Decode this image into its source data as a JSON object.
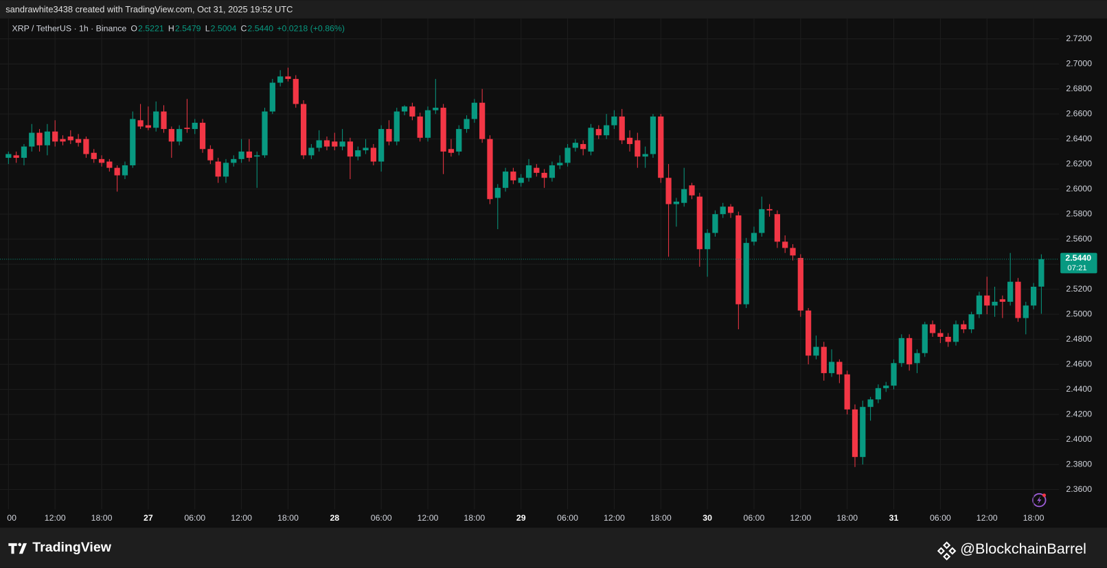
{
  "header": "sandrawhite3438 created with TradingView.com, Oct 31, 2025 19:52 UTC",
  "legend": {
    "symbol": "XRP / TetherUS · 1h · Binance",
    "fields": [
      {
        "key": "O",
        "value": "2.5221"
      },
      {
        "key": "H",
        "value": "2.5479"
      },
      {
        "key": "L",
        "value": "2.5004"
      },
      {
        "key": "C",
        "value": "2.5440"
      }
    ],
    "change": "+0.0218 (+0.86%)"
  },
  "price_tag": {
    "price": "2.5440",
    "countdown": "07:21"
  },
  "footer": {
    "brand": "TradingView",
    "credit": "@BlockchainBarrel"
  },
  "chart_data": {
    "type": "candlestick",
    "up_color": "#089981",
    "down_color": "#f23645",
    "grid": true,
    "ylim": [
      2.3442,
      2.7363
    ],
    "yticks": [
      {
        "value": 2.36,
        "label": "2.3600"
      },
      {
        "value": 2.38,
        "label": "2.3800"
      },
      {
        "value": 2.4,
        "label": "2.4000"
      },
      {
        "value": 2.42,
        "label": "2.4200"
      },
      {
        "value": 2.44,
        "label": "2.4400"
      },
      {
        "value": 2.46,
        "label": "2.4600"
      },
      {
        "value": 2.48,
        "label": "2.4800"
      },
      {
        "value": 2.5,
        "label": "2.5000"
      },
      {
        "value": 2.52,
        "label": "2.5200"
      },
      {
        "value": 2.54,
        "label": "2.5400"
      },
      {
        "value": 2.56,
        "label": "2.5600"
      },
      {
        "value": 2.58,
        "label": "2.5800"
      },
      {
        "value": 2.6,
        "label": "2.6000"
      },
      {
        "value": 2.62,
        "label": "2.6200"
      },
      {
        "value": 2.64,
        "label": "2.6400"
      },
      {
        "value": 2.66,
        "label": "2.6600"
      },
      {
        "value": 2.68,
        "label": "2.6800"
      },
      {
        "value": 2.7,
        "label": "2.7000"
      },
      {
        "value": 2.72,
        "label": "2.7200"
      }
    ],
    "xticks": [
      {
        "value": 0,
        "label": "00"
      },
      {
        "value": 6,
        "label": "12:00"
      },
      {
        "value": 12,
        "label": "18:00"
      },
      {
        "value": 18,
        "label": "27"
      },
      {
        "value": 24,
        "label": "06:00"
      },
      {
        "value": 30,
        "label": "12:00"
      },
      {
        "value": 36,
        "label": "18:00"
      },
      {
        "value": 42,
        "label": "28"
      },
      {
        "value": 48,
        "label": "06:00"
      },
      {
        "value": 54,
        "label": "12:00"
      },
      {
        "value": 60,
        "label": "18:00"
      },
      {
        "value": 66,
        "label": "29"
      },
      {
        "value": 72,
        "label": "06:00"
      },
      {
        "value": 78,
        "label": "12:00"
      },
      {
        "value": 84,
        "label": "18:00"
      },
      {
        "value": 90,
        "label": "30"
      },
      {
        "value": 96,
        "label": "06:00"
      },
      {
        "value": 102,
        "label": "12:00"
      },
      {
        "value": 108,
        "label": "18:00"
      },
      {
        "value": 114,
        "label": "31"
      },
      {
        "value": 120,
        "label": "06:00"
      },
      {
        "value": 126,
        "label": "12:00"
      },
      {
        "value": 132,
        "label": "18:00"
      }
    ],
    "candles": [
      {
        "o": 2.625,
        "h": 2.63,
        "l": 2.62,
        "c": 2.628
      },
      {
        "o": 2.627,
        "h": 2.63,
        "l": 2.621,
        "c": 2.625
      },
      {
        "o": 2.625,
        "h": 2.636,
        "l": 2.619,
        "c": 2.634
      },
      {
        "o": 2.634,
        "h": 2.652,
        "l": 2.63,
        "c": 2.645
      },
      {
        "o": 2.645,
        "h": 2.648,
        "l": 2.63,
        "c": 2.635
      },
      {
        "o": 2.635,
        "h": 2.652,
        "l": 2.627,
        "c": 2.646
      },
      {
        "o": 2.646,
        "h": 2.655,
        "l": 2.634,
        "c": 2.638
      },
      {
        "o": 2.64,
        "h": 2.643,
        "l": 2.635,
        "c": 2.638
      },
      {
        "o": 2.642,
        "h": 2.647,
        "l": 2.636,
        "c": 2.639
      },
      {
        "o": 2.64,
        "h": 2.644,
        "l": 2.634,
        "c": 2.637
      },
      {
        "o": 2.64,
        "h": 2.642,
        "l": 2.625,
        "c": 2.628
      },
      {
        "o": 2.629,
        "h": 2.632,
        "l": 2.621,
        "c": 2.624
      },
      {
        "o": 2.624,
        "h": 2.627,
        "l": 2.618,
        "c": 2.621
      },
      {
        "o": 2.622,
        "h": 2.624,
        "l": 2.614,
        "c": 2.617
      },
      {
        "o": 2.617,
        "h": 2.619,
        "l": 2.598,
        "c": 2.611
      },
      {
        "o": 2.611,
        "h": 2.622,
        "l": 2.608,
        "c": 2.619
      },
      {
        "o": 2.619,
        "h": 2.662,
        "l": 2.617,
        "c": 2.656
      },
      {
        "o": 2.655,
        "h": 2.668,
        "l": 2.648,
        "c": 2.65
      },
      {
        "o": 2.651,
        "h": 2.666,
        "l": 2.647,
        "c": 2.649
      },
      {
        "o": 2.649,
        "h": 2.67,
        "l": 2.646,
        "c": 2.662
      },
      {
        "o": 2.662,
        "h": 2.667,
        "l": 2.645,
        "c": 2.648
      },
      {
        "o": 2.648,
        "h": 2.65,
        "l": 2.625,
        "c": 2.638
      },
      {
        "o": 2.638,
        "h": 2.651,
        "l": 2.635,
        "c": 2.648
      },
      {
        "o": 2.649,
        "h": 2.672,
        "l": 2.645,
        "c": 2.648
      },
      {
        "o": 2.648,
        "h": 2.656,
        "l": 2.644,
        "c": 2.653
      },
      {
        "o": 2.653,
        "h": 2.656,
        "l": 2.629,
        "c": 2.632
      },
      {
        "o": 2.632,
        "h": 2.635,
        "l": 2.62,
        "c": 2.623
      },
      {
        "o": 2.622,
        "h": 2.625,
        "l": 2.605,
        "c": 2.61
      },
      {
        "o": 2.61,
        "h": 2.624,
        "l": 2.605,
        "c": 2.621
      },
      {
        "o": 2.621,
        "h": 2.627,
        "l": 2.618,
        "c": 2.624
      },
      {
        "o": 2.624,
        "h": 2.64,
        "l": 2.621,
        "c": 2.63
      },
      {
        "o": 2.63,
        "h": 2.64,
        "l": 2.622,
        "c": 2.625
      },
      {
        "o": 2.626,
        "h": 2.63,
        "l": 2.601,
        "c": 2.627
      },
      {
        "o": 2.627,
        "h": 2.665,
        "l": 2.625,
        "c": 2.662
      },
      {
        "o": 2.662,
        "h": 2.688,
        "l": 2.66,
        "c": 2.685
      },
      {
        "o": 2.685,
        "h": 2.695,
        "l": 2.682,
        "c": 2.69
      },
      {
        "o": 2.69,
        "h": 2.697,
        "l": 2.686,
        "c": 2.688
      },
      {
        "o": 2.688,
        "h": 2.691,
        "l": 2.665,
        "c": 2.668
      },
      {
        "o": 2.668,
        "h": 2.671,
        "l": 2.624,
        "c": 2.627
      },
      {
        "o": 2.627,
        "h": 2.636,
        "l": 2.624,
        "c": 2.633
      },
      {
        "o": 2.633,
        "h": 2.647,
        "l": 2.63,
        "c": 2.639
      },
      {
        "o": 2.639,
        "h": 2.642,
        "l": 2.631,
        "c": 2.634
      },
      {
        "o": 2.638,
        "h": 2.645,
        "l": 2.631,
        "c": 2.634
      },
      {
        "o": 2.634,
        "h": 2.648,
        "l": 2.631,
        "c": 2.638
      },
      {
        "o": 2.638,
        "h": 2.641,
        "l": 2.608,
        "c": 2.626
      },
      {
        "o": 2.626,
        "h": 2.634,
        "l": 2.623,
        "c": 2.631
      },
      {
        "o": 2.631,
        "h": 2.64,
        "l": 2.628,
        "c": 2.633
      },
      {
        "o": 2.633,
        "h": 2.636,
        "l": 2.619,
        "c": 2.622
      },
      {
        "o": 2.622,
        "h": 2.651,
        "l": 2.614,
        "c": 2.648
      },
      {
        "o": 2.648,
        "h": 2.655,
        "l": 2.635,
        "c": 2.638
      },
      {
        "o": 2.638,
        "h": 2.665,
        "l": 2.635,
        "c": 2.662
      },
      {
        "o": 2.662,
        "h": 2.667,
        "l": 2.659,
        "c": 2.666
      },
      {
        "o": 2.666,
        "h": 2.669,
        "l": 2.655,
        "c": 2.658
      },
      {
        "o": 2.658,
        "h": 2.661,
        "l": 2.638,
        "c": 2.641
      },
      {
        "o": 2.641,
        "h": 2.666,
        "l": 2.638,
        "c": 2.663
      },
      {
        "o": 2.663,
        "h": 2.688,
        "l": 2.66,
        "c": 2.665
      },
      {
        "o": 2.665,
        "h": 2.668,
        "l": 2.612,
        "c": 2.63
      },
      {
        "o": 2.632,
        "h": 2.64,
        "l": 2.626,
        "c": 2.629
      },
      {
        "o": 2.63,
        "h": 2.651,
        "l": 2.627,
        "c": 2.648
      },
      {
        "o": 2.648,
        "h": 2.659,
        "l": 2.645,
        "c": 2.656
      },
      {
        "o": 2.656,
        "h": 2.672,
        "l": 2.653,
        "c": 2.669
      },
      {
        "o": 2.669,
        "h": 2.68,
        "l": 2.637,
        "c": 2.64
      },
      {
        "o": 2.64,
        "h": 2.643,
        "l": 2.588,
        "c": 2.592
      },
      {
        "o": 2.593,
        "h": 2.604,
        "l": 2.568,
        "c": 2.601
      },
      {
        "o": 2.601,
        "h": 2.617,
        "l": 2.598,
        "c": 2.614
      },
      {
        "o": 2.614,
        "h": 2.617,
        "l": 2.604,
        "c": 2.607
      },
      {
        "o": 2.605,
        "h": 2.612,
        "l": 2.602,
        "c": 2.609
      },
      {
        "o": 2.609,
        "h": 2.624,
        "l": 2.606,
        "c": 2.619
      },
      {
        "o": 2.617,
        "h": 2.62,
        "l": 2.61,
        "c": 2.613
      },
      {
        "o": 2.613,
        "h": 2.616,
        "l": 2.601,
        "c": 2.609
      },
      {
        "o": 2.609,
        "h": 2.622,
        "l": 2.606,
        "c": 2.619
      },
      {
        "o": 2.619,
        "h": 2.627,
        "l": 2.616,
        "c": 2.621
      },
      {
        "o": 2.621,
        "h": 2.636,
        "l": 2.618,
        "c": 2.633
      },
      {
        "o": 2.633,
        "h": 2.64,
        "l": 2.63,
        "c": 2.637
      },
      {
        "o": 2.636,
        "h": 2.639,
        "l": 2.627,
        "c": 2.632
      },
      {
        "o": 2.63,
        "h": 2.652,
        "l": 2.627,
        "c": 2.649
      },
      {
        "o": 2.648,
        "h": 2.651,
        "l": 2.64,
        "c": 2.643
      },
      {
        "o": 2.643,
        "h": 2.66,
        "l": 2.64,
        "c": 2.651
      },
      {
        "o": 2.651,
        "h": 2.663,
        "l": 2.648,
        "c": 2.658
      },
      {
        "o": 2.658,
        "h": 2.664,
        "l": 2.636,
        "c": 2.639
      },
      {
        "o": 2.641,
        "h": 2.647,
        "l": 2.63,
        "c": 2.636
      },
      {
        "o": 2.639,
        "h": 2.645,
        "l": 2.617,
        "c": 2.626
      },
      {
        "o": 2.626,
        "h": 2.634,
        "l": 2.617,
        "c": 2.628
      },
      {
        "o": 2.628,
        "h": 2.66,
        "l": 2.625,
        "c": 2.658
      },
      {
        "o": 2.658,
        "h": 2.66,
        "l": 2.605,
        "c": 2.609
      },
      {
        "o": 2.609,
        "h": 2.62,
        "l": 2.546,
        "c": 2.588
      },
      {
        "o": 2.588,
        "h": 2.593,
        "l": 2.57,
        "c": 2.59
      },
      {
        "o": 2.589,
        "h": 2.617,
        "l": 2.586,
        "c": 2.6
      },
      {
        "o": 2.603,
        "h": 2.605,
        "l": 2.592,
        "c": 2.595
      },
      {
        "o": 2.594,
        "h": 2.597,
        "l": 2.538,
        "c": 2.552
      },
      {
        "o": 2.552,
        "h": 2.568,
        "l": 2.53,
        "c": 2.565
      },
      {
        "o": 2.565,
        "h": 2.583,
        "l": 2.562,
        "c": 2.58
      },
      {
        "o": 2.58,
        "h": 2.589,
        "l": 2.577,
        "c": 2.586
      },
      {
        "o": 2.586,
        "h": 2.588,
        "l": 2.577,
        "c": 2.581
      },
      {
        "o": 2.579,
        "h": 2.582,
        "l": 2.488,
        "c": 2.508
      },
      {
        "o": 2.508,
        "h": 2.561,
        "l": 2.505,
        "c": 2.557
      },
      {
        "o": 2.558,
        "h": 2.57,
        "l": 2.555,
        "c": 2.565
      },
      {
        "o": 2.565,
        "h": 2.594,
        "l": 2.562,
        "c": 2.584
      },
      {
        "o": 2.584,
        "h": 2.588,
        "l": 2.578,
        "c": 2.583
      },
      {
        "o": 2.58,
        "h": 2.583,
        "l": 2.553,
        "c": 2.558
      },
      {
        "o": 2.558,
        "h": 2.563,
        "l": 2.549,
        "c": 2.553
      },
      {
        "o": 2.553,
        "h": 2.556,
        "l": 2.543,
        "c": 2.547
      },
      {
        "o": 2.545,
        "h": 2.548,
        "l": 2.498,
        "c": 2.503
      },
      {
        "o": 2.503,
        "h": 2.505,
        "l": 2.46,
        "c": 2.467
      },
      {
        "o": 2.467,
        "h": 2.483,
        "l": 2.464,
        "c": 2.474
      },
      {
        "o": 2.474,
        "h": 2.478,
        "l": 2.447,
        "c": 2.453
      },
      {
        "o": 2.453,
        "h": 2.472,
        "l": 2.45,
        "c": 2.462
      },
      {
        "o": 2.462,
        "h": 2.464,
        "l": 2.445,
        "c": 2.452
      },
      {
        "o": 2.452,
        "h": 2.455,
        "l": 2.42,
        "c": 2.424
      },
      {
        "o": 2.424,
        "h": 2.428,
        "l": 2.378,
        "c": 2.386
      },
      {
        "o": 2.386,
        "h": 2.431,
        "l": 2.38,
        "c": 2.426
      },
      {
        "o": 2.426,
        "h": 2.434,
        "l": 2.415,
        "c": 2.432
      },
      {
        "o": 2.432,
        "h": 2.444,
        "l": 2.429,
        "c": 2.441
      },
      {
        "o": 2.441,
        "h": 2.446,
        "l": 2.438,
        "c": 2.443
      },
      {
        "o": 2.443,
        "h": 2.464,
        "l": 2.44,
        "c": 2.461
      },
      {
        "o": 2.461,
        "h": 2.484,
        "l": 2.458,
        "c": 2.481
      },
      {
        "o": 2.481,
        "h": 2.484,
        "l": 2.455,
        "c": 2.46
      },
      {
        "o": 2.461,
        "h": 2.472,
        "l": 2.453,
        "c": 2.469
      },
      {
        "o": 2.469,
        "h": 2.494,
        "l": 2.466,
        "c": 2.492
      },
      {
        "o": 2.492,
        "h": 2.495,
        "l": 2.482,
        "c": 2.485
      },
      {
        "o": 2.485,
        "h": 2.488,
        "l": 2.477,
        "c": 2.482
      },
      {
        "o": 2.482,
        "h": 2.485,
        "l": 2.474,
        "c": 2.478
      },
      {
        "o": 2.478,
        "h": 2.495,
        "l": 2.475,
        "c": 2.492
      },
      {
        "o": 2.492,
        "h": 2.495,
        "l": 2.485,
        "c": 2.488
      },
      {
        "o": 2.488,
        "h": 2.502,
        "l": 2.485,
        "c": 2.5
      },
      {
        "o": 2.5,
        "h": 2.518,
        "l": 2.497,
        "c": 2.515
      },
      {
        "o": 2.515,
        "h": 2.53,
        "l": 2.5,
        "c": 2.507
      },
      {
        "o": 2.507,
        "h": 2.522,
        "l": 2.498,
        "c": 2.51
      },
      {
        "o": 2.512,
        "h": 2.515,
        "l": 2.497,
        "c": 2.51
      },
      {
        "o": 2.51,
        "h": 2.549,
        "l": 2.507,
        "c": 2.526
      },
      {
        "o": 2.526,
        "h": 2.529,
        "l": 2.494,
        "c": 2.497
      },
      {
        "o": 2.497,
        "h": 2.51,
        "l": 2.484,
        "c": 2.507
      },
      {
        "o": 2.507,
        "h": 2.525,
        "l": 2.504,
        "c": 2.522
      },
      {
        "o": 2.5221,
        "h": 2.5479,
        "l": 2.5004,
        "c": 2.544
      }
    ]
  }
}
